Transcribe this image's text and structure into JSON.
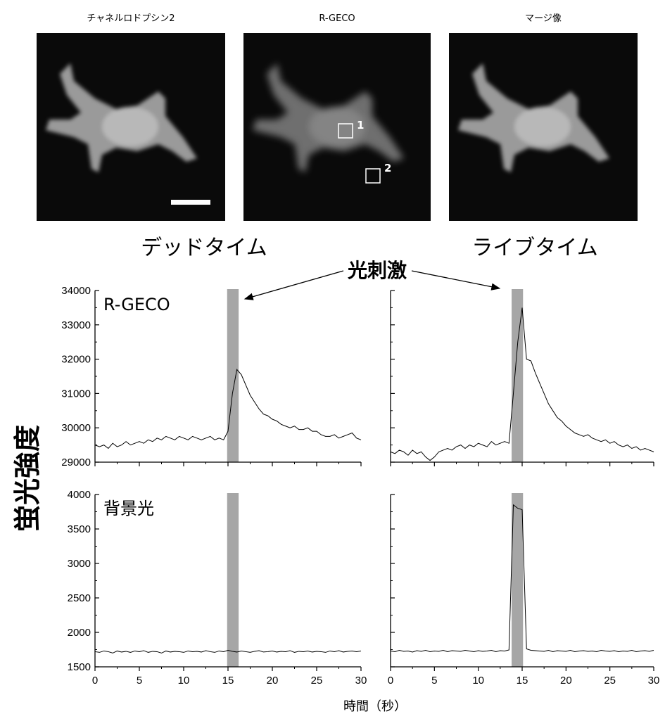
{
  "images": {
    "titles": [
      "チャネルロドプシン2",
      "R-GECO",
      "マージ像"
    ],
    "roi_labels": [
      "1",
      "2"
    ]
  },
  "mode_labels": [
    "デッドタイム",
    "ライブタイム"
  ],
  "stimulus_label": "光刺激",
  "ylabel": "蛍光強度",
  "xlabel": "時間（秒）",
  "chart_data": [
    {
      "type": "line",
      "label": "R-GECO",
      "color": "#000000",
      "stimulus": [
        14.9,
        16.2
      ],
      "stimulus_color": "#a6a6a6",
      "xlim": [
        0,
        30
      ],
      "xticks": [
        0,
        5,
        10,
        15,
        20,
        25,
        30
      ],
      "ylim": [
        29000,
        34000
      ],
      "yticks": [
        29000,
        30000,
        31000,
        32000,
        33000,
        34000
      ],
      "show_xtick_labels": false,
      "show_ytick_labels": true,
      "x": [
        0,
        0.5,
        1,
        1.5,
        2,
        2.5,
        3,
        3.5,
        4,
        4.5,
        5,
        5.5,
        6,
        6.5,
        7,
        7.5,
        8,
        8.5,
        9,
        9.5,
        10,
        10.5,
        11,
        11.5,
        12,
        12.5,
        13,
        13.5,
        14,
        14.5,
        15,
        15.5,
        16,
        16.5,
        17,
        17.5,
        18,
        18.5,
        19,
        19.5,
        20,
        20.5,
        21,
        21.5,
        22,
        22.5,
        23,
        23.5,
        24,
        24.5,
        25,
        25.5,
        26,
        26.5,
        27,
        27.5,
        28,
        28.5,
        29,
        29.5,
        30
      ],
      "values": [
        29500,
        29450,
        29500,
        29400,
        29550,
        29450,
        29500,
        29600,
        29500,
        29550,
        29600,
        29550,
        29650,
        29600,
        29700,
        29650,
        29750,
        29700,
        29650,
        29750,
        29700,
        29650,
        29750,
        29700,
        29650,
        29700,
        29750,
        29650,
        29700,
        29650,
        29900,
        31000,
        31700,
        31550,
        31250,
        30950,
        30750,
        30550,
        30400,
        30350,
        30250,
        30200,
        30100,
        30050,
        30000,
        30050,
        29950,
        29950,
        30000,
        29900,
        29900,
        29800,
        29750,
        29750,
        29800,
        29700,
        29750,
        29800,
        29850,
        29700,
        29650
      ]
    },
    {
      "type": "line",
      "color": "#000000",
      "stimulus": [
        13.8,
        15.1
      ],
      "stimulus_color": "#a6a6a6",
      "xlim": [
        0,
        30
      ],
      "xticks": [
        0,
        5,
        10,
        15,
        20,
        25,
        30
      ],
      "ylim": [
        29000,
        34000
      ],
      "yticks": [
        29000,
        30000,
        31000,
        32000,
        33000,
        34000
      ],
      "show_xtick_labels": false,
      "show_ytick_labels": false,
      "x": [
        0,
        0.5,
        1,
        1.5,
        2,
        2.5,
        3,
        3.5,
        4,
        4.5,
        5,
        5.5,
        6,
        6.5,
        7,
        7.5,
        8,
        8.5,
        9,
        9.5,
        10,
        10.5,
        11,
        11.5,
        12,
        12.5,
        13,
        13.5,
        14,
        14.5,
        15,
        15.5,
        16,
        16.5,
        17,
        17.5,
        18,
        18.5,
        19,
        19.5,
        20,
        20.5,
        21,
        21.5,
        22,
        22.5,
        23,
        23.5,
        24,
        24.5,
        25,
        25.5,
        26,
        26.5,
        27,
        27.5,
        28,
        28.5,
        29,
        29.5,
        30
      ],
      "values": [
        29300,
        29250,
        29350,
        29300,
        29200,
        29350,
        29250,
        29300,
        29150,
        29050,
        29150,
        29300,
        29350,
        29400,
        29350,
        29450,
        29500,
        29400,
        29500,
        29450,
        29550,
        29500,
        29450,
        29600,
        29500,
        29550,
        29600,
        29550,
        31000,
        32500,
        33500,
        32000,
        31950,
        31600,
        31300,
        31000,
        30700,
        30500,
        30300,
        30200,
        30050,
        29950,
        29850,
        29800,
        29750,
        29800,
        29700,
        29650,
        29600,
        29650,
        29550,
        29600,
        29500,
        29450,
        29500,
        29400,
        29450,
        29350,
        29400,
        29350,
        29300
      ]
    },
    {
      "type": "line",
      "label": "背景光",
      "color": "#000000",
      "stimulus": [
        14.9,
        16.2
      ],
      "stimulus_color": "#a6a6a6",
      "xlim": [
        0,
        30
      ],
      "xticks": [
        0,
        5,
        10,
        15,
        20,
        25,
        30
      ],
      "ylim": [
        1500,
        4000
      ],
      "yticks": [
        1500,
        2000,
        2500,
        3000,
        3500,
        4000
      ],
      "show_xtick_labels": true,
      "show_ytick_labels": true,
      "x": [
        0,
        0.5,
        1,
        1.5,
        2,
        2.5,
        3,
        3.5,
        4,
        4.5,
        5,
        5.5,
        6,
        6.5,
        7,
        7.5,
        8,
        8.5,
        9,
        9.5,
        10,
        10.5,
        11,
        11.5,
        12,
        12.5,
        13,
        13.5,
        14,
        14.5,
        15,
        15.5,
        16,
        16.5,
        17,
        17.5,
        18,
        18.5,
        19,
        19.5,
        20,
        20.5,
        21,
        21.5,
        22,
        22.5,
        23,
        23.5,
        24,
        24.5,
        25,
        25.5,
        26,
        26.5,
        27,
        27.5,
        28,
        28.5,
        29,
        29.5,
        30
      ],
      "values": [
        1720,
        1710,
        1730,
        1720,
        1700,
        1730,
        1715,
        1725,
        1710,
        1730,
        1720,
        1735,
        1710,
        1725,
        1720,
        1700,
        1730,
        1715,
        1725,
        1720,
        1710,
        1730,
        1720,
        1725,
        1715,
        1735,
        1720,
        1710,
        1730,
        1720,
        1740,
        1725,
        1715,
        1730,
        1720,
        1710,
        1725,
        1735,
        1715,
        1720,
        1730,
        1715,
        1725,
        1720,
        1735,
        1710,
        1725,
        1720,
        1730,
        1715,
        1725,
        1720,
        1710,
        1730,
        1720,
        1735,
        1715,
        1725,
        1730,
        1720,
        1730
      ]
    },
    {
      "type": "line",
      "color": "#000000",
      "stimulus": [
        13.8,
        15.1
      ],
      "stimulus_color": "#a6a6a6",
      "xlim": [
        0,
        30
      ],
      "xticks": [
        0,
        5,
        10,
        15,
        20,
        25,
        30
      ],
      "ylim": [
        1500,
        4000
      ],
      "yticks": [
        1500,
        2000,
        2500,
        3000,
        3500,
        4000
      ],
      "show_xtick_labels": true,
      "show_ytick_labels": false,
      "x": [
        0,
        0.5,
        1,
        1.5,
        2,
        2.5,
        3,
        3.5,
        4,
        4.5,
        5,
        5.5,
        6,
        6.5,
        7,
        7.5,
        8,
        8.5,
        9,
        9.5,
        10,
        10.5,
        11,
        11.5,
        12,
        12.5,
        13,
        13.5,
        14,
        14.5,
        15,
        15.5,
        16,
        16.5,
        17,
        17.5,
        18,
        18.5,
        19,
        19.5,
        20,
        20.5,
        21,
        21.5,
        22,
        22.5,
        23,
        23.5,
        24,
        24.5,
        25,
        25.5,
        26,
        26.5,
        27,
        27.5,
        28,
        28.5,
        29,
        29.5,
        30
      ],
      "values": [
        1730,
        1720,
        1740,
        1725,
        1730,
        1715,
        1735,
        1725,
        1740,
        1720,
        1730,
        1725,
        1740,
        1720,
        1735,
        1730,
        1725,
        1740,
        1730,
        1720,
        1735,
        1725,
        1730,
        1740,
        1720,
        1735,
        1730,
        1745,
        3850,
        3800,
        3780,
        1760,
        1740,
        1735,
        1730,
        1725,
        1740,
        1720,
        1735,
        1730,
        1725,
        1740,
        1720,
        1730,
        1735,
        1725,
        1730,
        1720,
        1740,
        1730,
        1725,
        1735,
        1720,
        1730,
        1725,
        1740,
        1720,
        1730,
        1735,
        1725,
        1740
      ]
    }
  ]
}
